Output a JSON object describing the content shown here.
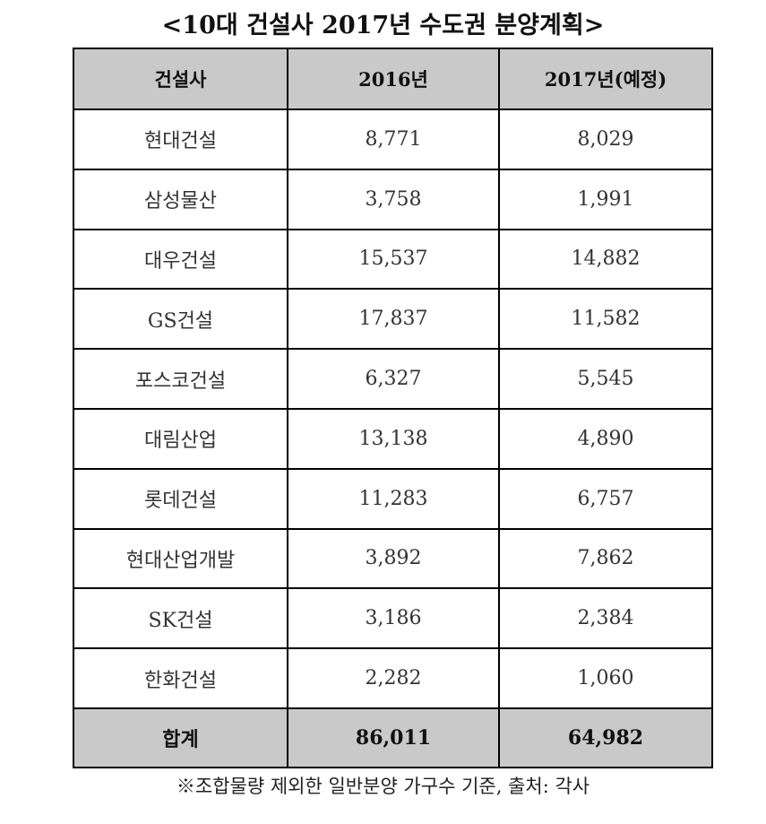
{
  "title": "<10대 건설사 2017년 수도권 분양계획>",
  "table": {
    "headers": [
      "건설사",
      "2016년",
      "2017년(예정)"
    ],
    "rows": [
      {
        "company": "현대건설",
        "y2016": "8,771",
        "y2017": "8,029"
      },
      {
        "company": "삼성물산",
        "y2016": "3,758",
        "y2017": "1,991"
      },
      {
        "company": "대우건설",
        "y2016": "15,537",
        "y2017": "14,882"
      },
      {
        "company": "GS건설",
        "y2016": "17,837",
        "y2017": "11,582"
      },
      {
        "company": "포스코건설",
        "y2016": "6,327",
        "y2017": "5,545"
      },
      {
        "company": "대림산업",
        "y2016": "13,138",
        "y2017": "4,890"
      },
      {
        "company": "롯데건설",
        "y2016": "11,283",
        "y2017": "6,757"
      },
      {
        "company": "현대산업개발",
        "y2016": "3,892",
        "y2017": "7,862"
      },
      {
        "company": "SK건설",
        "y2016": "3,186",
        "y2017": "2,384"
      },
      {
        "company": "한화건설",
        "y2016": "2,282",
        "y2017": "1,060"
      }
    ],
    "total": {
      "label": "합계",
      "y2016": "86,011",
      "y2017": "64,982"
    }
  },
  "note": "※조합물량 제외한 일반분양 가구수 기준, 출처: 각사",
  "colors": {
    "header_bg": "#c9c9c9",
    "border": "#000000"
  }
}
